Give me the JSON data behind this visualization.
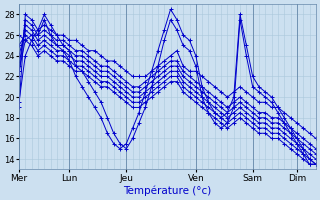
{
  "xlabel": "Température (°c)",
  "background_color": "#cce0f0",
  "grid_color": "#aac8dc",
  "line_color": "#0000cc",
  "marker": "+",
  "ylim": [
    13,
    29
  ],
  "yticks": [
    14,
    16,
    18,
    20,
    22,
    24,
    26,
    28
  ],
  "n_points": 48,
  "day_labels": [
    "Mer",
    "Lun",
    "Jeu",
    "Ven",
    "Sam",
    "Dim"
  ],
  "day_tick_x": [
    0,
    8,
    17,
    28,
    37,
    44
  ],
  "series": [
    [
      19.0,
      28.0,
      27.5,
      26.5,
      27.0,
      26.5,
      26.0,
      26.0,
      25.5,
      25.5,
      25.0,
      24.5,
      24.5,
      24.0,
      23.5,
      23.5,
      23.0,
      22.5,
      22.0,
      22.0,
      22.0,
      22.5,
      23.0,
      23.5,
      24.0,
      24.5,
      23.0,
      22.5,
      22.5,
      22.0,
      21.5,
      21.0,
      20.5,
      20.0,
      20.5,
      21.0,
      20.5,
      20.0,
      19.5,
      19.5,
      19.0,
      19.0,
      18.5,
      18.0,
      17.5,
      17.0,
      16.5,
      16.0
    ],
    [
      22.0,
      27.5,
      27.0,
      26.0,
      26.5,
      26.0,
      25.5,
      25.5,
      25.0,
      24.5,
      24.5,
      24.0,
      23.5,
      23.0,
      23.0,
      22.5,
      22.0,
      21.5,
      21.0,
      21.0,
      21.5,
      22.0,
      22.5,
      23.0,
      23.5,
      23.5,
      22.5,
      22.0,
      21.5,
      21.0,
      20.5,
      20.0,
      19.5,
      19.0,
      19.5,
      20.0,
      19.5,
      19.0,
      18.5,
      18.5,
      18.0,
      18.0,
      17.5,
      17.0,
      16.5,
      16.0,
      15.5,
      15.0
    ],
    [
      23.0,
      27.0,
      26.5,
      25.5,
      26.0,
      25.5,
      25.0,
      25.0,
      24.5,
      24.0,
      24.0,
      23.5,
      23.0,
      22.5,
      22.5,
      22.0,
      21.5,
      21.0,
      20.5,
      20.5,
      21.0,
      21.5,
      22.0,
      22.5,
      23.0,
      23.0,
      22.0,
      21.5,
      21.0,
      20.5,
      20.0,
      19.5,
      19.0,
      18.5,
      19.0,
      19.5,
      19.0,
      18.5,
      18.0,
      18.0,
      17.5,
      17.5,
      17.0,
      16.5,
      16.0,
      15.5,
      15.0,
      14.5
    ],
    [
      24.0,
      26.5,
      26.0,
      25.0,
      25.5,
      25.0,
      24.5,
      24.5,
      24.0,
      23.5,
      23.5,
      23.0,
      22.5,
      22.0,
      22.0,
      21.5,
      21.0,
      20.5,
      20.0,
      20.0,
      20.5,
      21.0,
      21.5,
      22.0,
      22.5,
      22.5,
      21.5,
      21.0,
      20.5,
      20.0,
      19.5,
      19.0,
      18.5,
      18.0,
      18.5,
      19.0,
      18.5,
      18.0,
      17.5,
      17.5,
      17.0,
      17.0,
      16.5,
      16.0,
      15.5,
      15.0,
      14.5,
      14.0
    ],
    [
      25.0,
      26.0,
      25.5,
      24.5,
      25.0,
      24.5,
      24.0,
      24.0,
      23.5,
      23.0,
      23.0,
      22.5,
      22.0,
      21.5,
      21.5,
      21.0,
      20.5,
      20.0,
      19.5,
      19.5,
      20.0,
      20.5,
      21.0,
      21.5,
      22.0,
      22.0,
      21.0,
      20.5,
      20.0,
      19.5,
      19.0,
      18.5,
      18.0,
      17.5,
      18.0,
      18.5,
      18.0,
      17.5,
      17.0,
      17.0,
      16.5,
      16.5,
      16.0,
      15.5,
      15.0,
      14.5,
      14.0,
      13.5
    ],
    [
      26.0,
      25.5,
      25.0,
      24.0,
      24.5,
      24.0,
      23.5,
      23.5,
      23.0,
      22.5,
      22.5,
      22.0,
      21.5,
      21.0,
      21.0,
      20.5,
      20.0,
      19.5,
      19.0,
      19.0,
      19.5,
      20.0,
      20.5,
      21.0,
      21.5,
      21.5,
      20.5,
      20.0,
      19.5,
      19.0,
      18.5,
      18.0,
      17.5,
      17.0,
      17.5,
      18.0,
      17.5,
      17.0,
      16.5,
      16.5,
      16.0,
      16.0,
      15.5,
      15.0,
      14.5,
      14.0,
      13.5,
      13.5
    ],
    [
      19.5,
      24.0,
      25.5,
      26.5,
      28.0,
      27.0,
      26.0,
      25.0,
      24.5,
      23.0,
      22.5,
      21.5,
      20.5,
      19.5,
      18.0,
      16.5,
      15.5,
      15.0,
      16.0,
      17.5,
      19.0,
      21.0,
      23.0,
      25.5,
      27.5,
      26.5,
      25.0,
      24.5,
      23.0,
      20.0,
      18.5,
      17.5,
      17.0,
      17.5,
      19.0,
      27.5,
      24.0,
      21.0,
      20.5,
      20.0,
      19.5,
      18.5,
      17.5,
      16.5,
      15.5,
      14.5,
      13.5,
      13.5
    ],
    [
      22.5,
      25.5,
      26.0,
      26.0,
      27.5,
      26.0,
      25.0,
      24.5,
      23.5,
      22.0,
      21.0,
      20.0,
      19.0,
      18.0,
      16.5,
      15.5,
      15.0,
      15.5,
      17.0,
      18.5,
      20.5,
      22.5,
      24.5,
      26.5,
      28.5,
      27.5,
      26.0,
      25.5,
      24.0,
      21.0,
      19.5,
      18.5,
      18.0,
      18.5,
      20.0,
      28.0,
      25.0,
      22.0,
      21.0,
      20.5,
      20.0,
      19.0,
      18.0,
      17.0,
      16.0,
      15.0,
      14.0,
      13.5
    ]
  ]
}
